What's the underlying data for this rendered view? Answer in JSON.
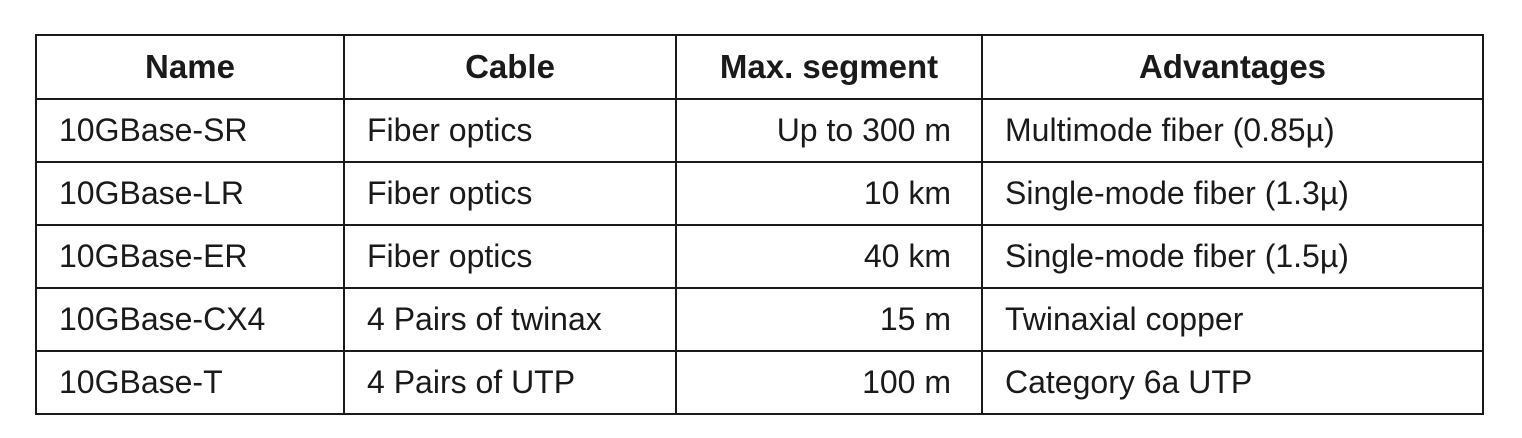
{
  "table": {
    "headers": [
      "Name",
      "Cable",
      "Max. segment",
      "Advantages"
    ],
    "rows": [
      [
        "10GBase-SR",
        "Fiber optics",
        "Up to 300 m",
        "Multimode fiber (0.85µ)"
      ],
      [
        "10GBase-LR",
        "Fiber optics",
        "10 km",
        "Single-mode fiber (1.3µ)"
      ],
      [
        "10GBase-ER",
        "Fiber optics",
        "40 km",
        "Single-mode fiber (1.5µ)"
      ],
      [
        "10GBase-CX4",
        "4 Pairs of twinax",
        "15 m",
        "Twinaxial copper"
      ],
      [
        "10GBase-T",
        "4 Pairs of UTP",
        "100 m",
        "Category 6a UTP"
      ]
    ]
  }
}
